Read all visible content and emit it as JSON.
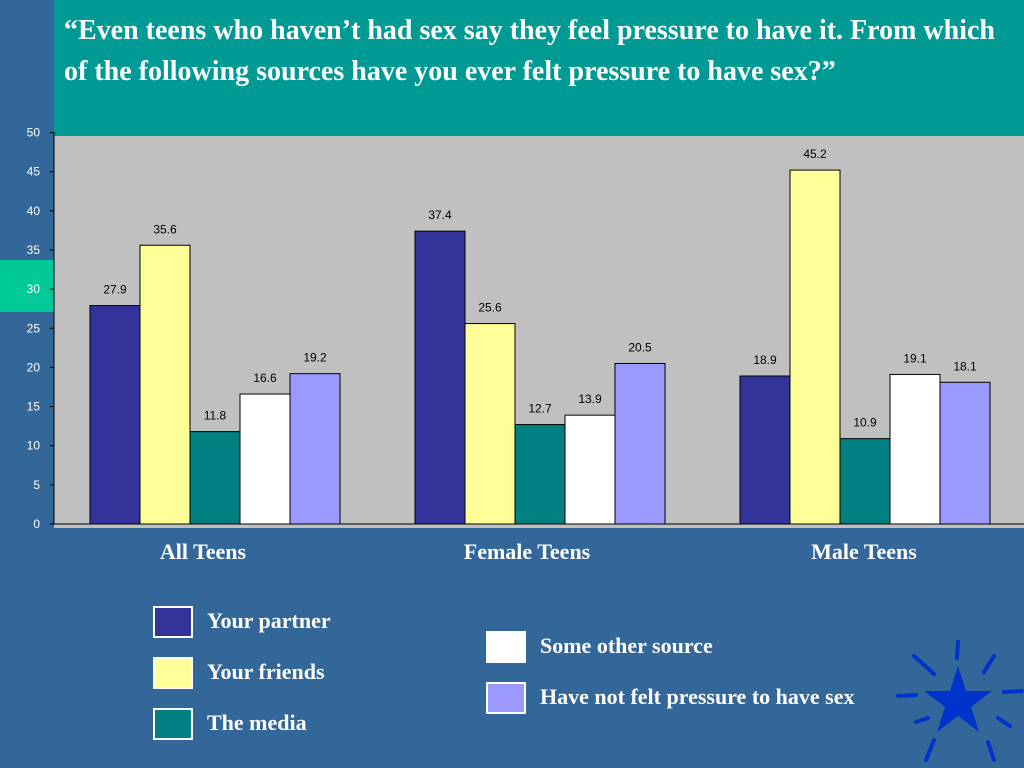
{
  "chart_data": {
    "type": "bar",
    "title": "“Even teens who haven’t had sex say they feel pressure to have it. From which of the following sources have you ever felt pressure to have sex?”",
    "categories": [
      "All Teens",
      "Female Teens",
      "Male Teens"
    ],
    "series": [
      {
        "name": "Your partner",
        "color": "#333399",
        "values": [
          27.9,
          37.4,
          18.9
        ]
      },
      {
        "name": "Your friends",
        "color": "#ffff99",
        "values": [
          35.6,
          25.6,
          45.2
        ]
      },
      {
        "name": "The media",
        "color": "#008080",
        "values": [
          11.8,
          12.7,
          10.9
        ]
      },
      {
        "name": "Some other source",
        "color": "#ffffff",
        "values": [
          16.6,
          13.9,
          19.1
        ]
      },
      {
        "name": "Have not felt pressure to have sex",
        "color": "#9999ff",
        "values": [
          19.2,
          20.5,
          18.1
        ]
      }
    ],
    "ylim": [
      0,
      50
    ],
    "yticks": [
      "0",
      "5",
      "10",
      "15",
      "20",
      "25",
      "30",
      "35",
      "40",
      "45",
      "50"
    ],
    "grid": false,
    "legend_position": "bottom"
  },
  "colors": {
    "background": "#336699",
    "title_box": "#009a94",
    "plot_area": "#c0c0c0",
    "side_tab": "#00c896",
    "star": "#0033cc"
  }
}
